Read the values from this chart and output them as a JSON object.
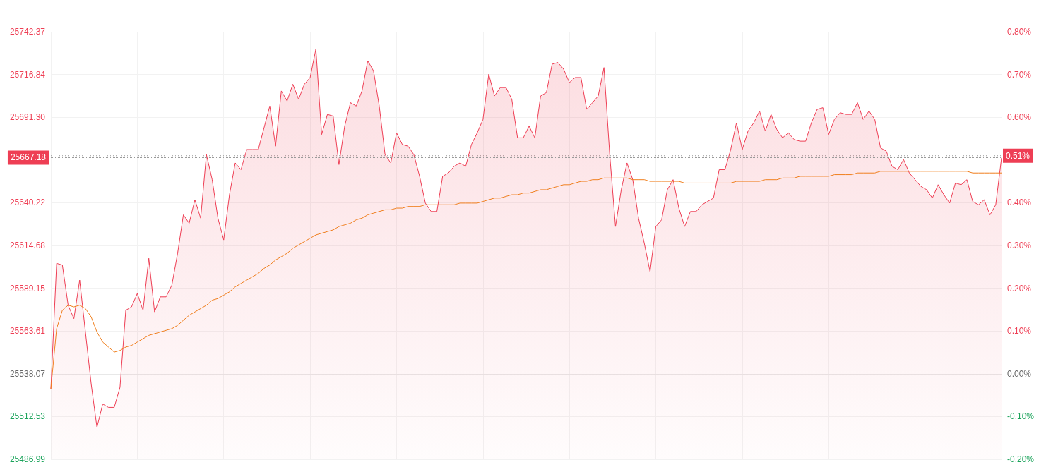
{
  "chart_data": {
    "type": "area",
    "categories": [
      null,
      null,
      null,
      null,
      null,
      null,
      null,
      null,
      null,
      null,
      null,
      null,
      null,
      null,
      null,
      null,
      null,
      null,
      null,
      null,
      null,
      null,
      null,
      null,
      null,
      null,
      null,
      null,
      null,
      null,
      null,
      null,
      null,
      null,
      null,
      null,
      null,
      null,
      null,
      null,
      null,
      null,
      null,
      null,
      null,
      null,
      null,
      null,
      null,
      null,
      null,
      null,
      null,
      null,
      null,
      null,
      null,
      null,
      null,
      null,
      null,
      null,
      null,
      null,
      null,
      null,
      null,
      null,
      null,
      null,
      null,
      null,
      null,
      null,
      null,
      null,
      null,
      null,
      null,
      null,
      null,
      null,
      null,
      null,
      null,
      null,
      null,
      null,
      null,
      null,
      null,
      null,
      null,
      null,
      null,
      null,
      null,
      null,
      null,
      null,
      null,
      null,
      null,
      null,
      null,
      null,
      null,
      null,
      null,
      null,
      null,
      null,
      null,
      null,
      null,
      null,
      null,
      null,
      null,
      null,
      null,
      null,
      null,
      null,
      null,
      null,
      null,
      null,
      null,
      null,
      null,
      null,
      null,
      null,
      null,
      null,
      null,
      null,
      null,
      null,
      null,
      null,
      null,
      null,
      null,
      null,
      null,
      null,
      null,
      null,
      null,
      null,
      null,
      null,
      null,
      null,
      null,
      null,
      null,
      null,
      null,
      null,
      null,
      null,
      null,
      null
    ],
    "series": [
      {
        "color": "#ee3e54",
        "values": [
          25529,
          25604,
          25603,
          25579,
          25571,
          25594,
          25563,
          25532,
          25506,
          25520,
          25518,
          25518,
          25530,
          25576,
          25578,
          25586,
          25576,
          25607,
          25575,
          25584,
          25584,
          25591,
          25610,
          25633,
          25628,
          25642,
          25631,
          25669,
          25654,
          25631,
          25618,
          25645,
          25664,
          25660,
          25672,
          25672,
          25672,
          25685,
          25698,
          25674,
          25707,
          25701,
          25711,
          25702,
          25711,
          25715,
          25732,
          25681,
          25693,
          25692,
          25663,
          25686,
          25700,
          25698,
          25707,
          25725,
          25719,
          25698,
          25669,
          25664,
          25682,
          25675,
          25674,
          25669,
          25656,
          25640,
          25635,
          25635,
          25656,
          25658,
          25662,
          25664,
          25662,
          25675,
          25682,
          25690,
          25717,
          25704,
          25709,
          25709,
          25702,
          25679,
          25679,
          25686,
          25679,
          25704,
          25706,
          25723,
          25724,
          25720,
          25712,
          25715,
          25715,
          25696,
          25700,
          25704,
          25721,
          25669,
          25626,
          25648,
          25664,
          25654,
          25631,
          25616,
          25599,
          25626,
          25630,
          25648,
          25654,
          25637,
          25626,
          25635,
          25635,
          25639,
          25641,
          25643,
          25660,
          25660,
          25672,
          25688,
          25672,
          25683,
          25688,
          25695,
          25683,
          25693,
          25684,
          25679,
          25682,
          25678,
          25677,
          25677,
          25688,
          25696,
          25697,
          25681,
          25690,
          25694,
          25693,
          25693,
          25700,
          25690,
          25695,
          25690,
          25673,
          25671,
          25662,
          25660,
          25666,
          25658,
          25654,
          25650,
          25648,
          25643,
          25651,
          25645,
          25640,
          25652,
          25651,
          25654,
          25641,
          25639,
          25642,
          25633,
          25639,
          25667
        ]
      },
      {
        "type": "line",
        "color": "#f07f1e",
        "values": [
          25529,
          25565,
          25576,
          25579,
          25578,
          25579,
          25577,
          25572,
          25563,
          25557,
          25554,
          25551,
          25552,
          25554,
          25555,
          25557,
          25559,
          25561,
          25562,
          25563,
          25564,
          25565,
          25567,
          25570,
          25573,
          25575,
          25577,
          25579,
          25582,
          25583,
          25585,
          25587,
          25590,
          25592,
          25594,
          25596,
          25598,
          25601,
          25603,
          25606,
          25608,
          25610,
          25613,
          25615,
          25617,
          25619,
          25621,
          25622,
          25623,
          25624,
          25626,
          25627,
          25628,
          25630,
          25631,
          25633,
          25634,
          25635,
          25636,
          25636,
          25637,
          25637,
          25638,
          25638,
          25638,
          25639,
          25639,
          25639,
          25639,
          25639,
          25639,
          25640,
          25640,
          25640,
          25640,
          25641,
          25642,
          25643,
          25643,
          25644,
          25645,
          25645,
          25646,
          25646,
          25647,
          25648,
          25648,
          25649,
          25650,
          25651,
          25651,
          25652,
          25653,
          25653,
          25654,
          25654,
          25655,
          25655,
          25655,
          25655,
          25655,
          25654,
          25654,
          25654,
          25653,
          25653,
          25653,
          25653,
          25653,
          25653,
          25652,
          25652,
          25652,
          25652,
          25652,
          25652,
          25652,
          25652,
          25652,
          25653,
          25653,
          25653,
          25653,
          25653,
          25654,
          25654,
          25654,
          25655,
          25655,
          25655,
          25656,
          25656,
          25656,
          25656,
          25656,
          25656,
          25657,
          25657,
          25657,
          25657,
          25658,
          25658,
          25658,
          25658,
          25659,
          25659,
          25659,
          25659,
          25659,
          25659,
          25659,
          25659,
          25659,
          25659,
          25659,
          25659,
          25659,
          25659,
          25659,
          25659,
          25658,
          25658,
          25658,
          25658,
          25658,
          25658
        ]
      }
    ],
    "ylim": [
      25486.99,
      25742.37
    ],
    "yticks": [
      25486.99,
      25512.53,
      25538.07,
      25563.61,
      25589.15,
      25614.68,
      25640.22,
      {
        "value": 25691.3,
        "label": "25691.30"
      },
      25716.84,
      25742.37
    ],
    "y2lim": [
      -0.2,
      0.8
    ],
    "y2ticks": [
      {
        "value": -0.2,
        "label": "-0.20%"
      },
      {
        "value": -0.1,
        "label": "-0.10%"
      },
      {
        "value": 0,
        "label": "0.00%"
      },
      {
        "value": 0.1,
        "label": "0.10%"
      },
      {
        "value": 0.2,
        "label": "0.20%"
      },
      {
        "value": 0.3,
        "label": "0.30%"
      },
      {
        "value": 0.4,
        "label": "0.40%"
      },
      {
        "value": 0.6,
        "label": "0.60%"
      },
      {
        "value": 0.7,
        "label": "0.70%"
      },
      {
        "value": 0.8,
        "label": "0.80%"
      }
    ],
    "ref_lines": [
      {
        "axis": "y",
        "value": 25667.18,
        "label": "25667.18",
        "line_style": "dotted"
      },
      {
        "axis": "y2",
        "value": 0.51,
        "label": "0.51%",
        "line_style": "dotted"
      }
    ],
    "grid": true,
    "marker": "none"
  }
}
